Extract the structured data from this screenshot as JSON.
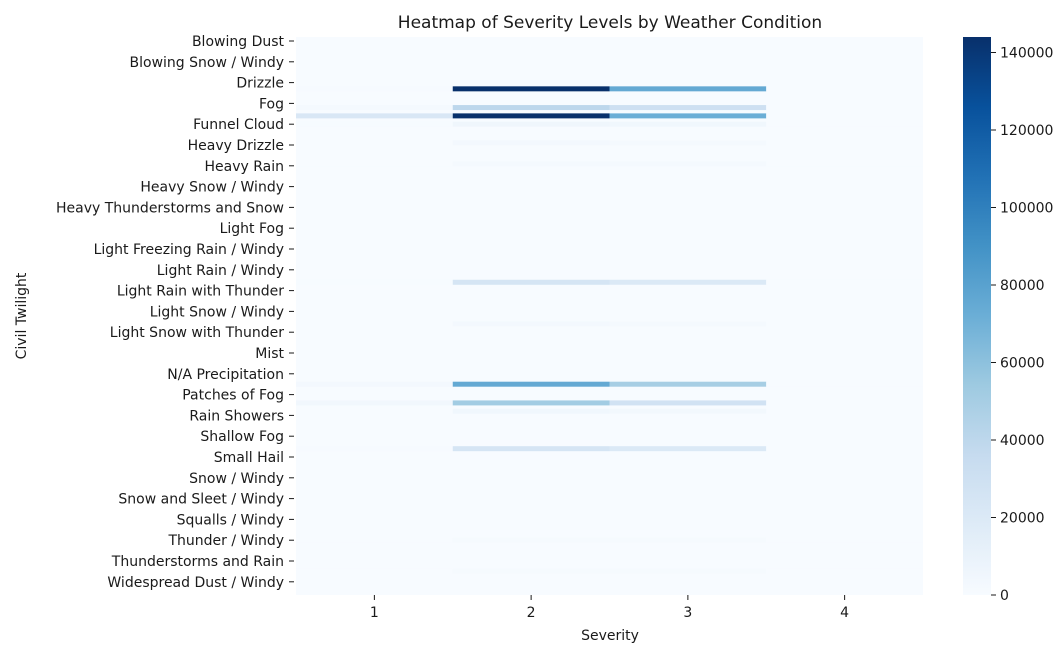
{
  "chart_data": {
    "type": "heatmap",
    "title": "Heatmap of Severity Levels by Weather Condition",
    "xlabel": "Severity",
    "ylabel": "Civil Twilight",
    "x_categories": [
      "1",
      "2",
      "3",
      "4"
    ],
    "y_tick_labels": [
      "Blowing Dust",
      "Blowing Snow / Windy",
      "Drizzle",
      "Fog",
      "Funnel Cloud",
      "Heavy Drizzle",
      "Heavy Rain",
      "Heavy Snow / Windy",
      "Heavy Thunderstorms and Snow",
      "Light Fog",
      "Light Freezing Rain / Windy",
      "Light Rain / Windy",
      "Light Rain with Thunder",
      "Light Snow / Windy",
      "Light Snow with Thunder",
      "Mist",
      "N/A Precipitation",
      "Patches of Fog",
      "Rain Showers",
      "Shallow Fog",
      "Small Hail",
      "Snow / Windy",
      "Snow and Sleet / Windy",
      "Squalls / Windy",
      "Thunder / Windy",
      "Thunderstorms and Rain",
      "Widespread Dust / Windy"
    ],
    "colorbar": {
      "colormap": "Blues",
      "min": 0,
      "max": 144000,
      "ticks": [
        0,
        20000,
        40000,
        60000,
        80000,
        100000,
        120000,
        140000
      ]
    },
    "highlighted_rows": [
      {
        "position": 2.3,
        "values": [
          800,
          144000,
          75000,
          0
        ]
      },
      {
        "position": 3.2,
        "values": [
          2000,
          40000,
          30000,
          0
        ]
      },
      {
        "position": 3.6,
        "values": [
          22000,
          144000,
          72000,
          0
        ]
      },
      {
        "position": 4.0,
        "values": [
          400,
          6000,
          5000,
          0
        ]
      },
      {
        "position": 4.9,
        "values": [
          200,
          3000,
          2500,
          0
        ]
      },
      {
        "position": 5.9,
        "values": [
          100,
          2500,
          2000,
          0
        ]
      },
      {
        "position": 11.6,
        "values": [
          500,
          25000,
          20000,
          0
        ]
      },
      {
        "position": 13.6,
        "values": [
          200,
          3000,
          2500,
          0
        ]
      },
      {
        "position": 16.5,
        "values": [
          3000,
          75000,
          50000,
          0
        ]
      },
      {
        "position": 17.4,
        "values": [
          4000,
          52000,
          28000,
          0
        ]
      },
      {
        "position": 17.8,
        "values": [
          300,
          5000,
          3500,
          0
        ]
      },
      {
        "position": 19.6,
        "values": [
          800,
          25000,
          20000,
          0
        ]
      },
      {
        "position": 24.0,
        "values": [
          100,
          1500,
          1500,
          0
        ]
      },
      {
        "position": 25.5,
        "values": [
          100,
          1500,
          1200,
          0
        ]
      }
    ]
  }
}
